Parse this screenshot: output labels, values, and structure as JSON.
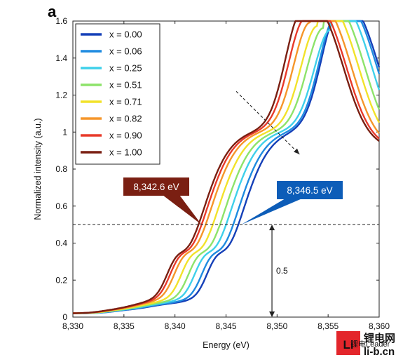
{
  "panel_label": "a",
  "chart_data": {
    "type": "line",
    "xlabel": "Energy (eV)",
    "ylabel": "Normalized intensity (a.u.)",
    "xlim": [
      8330,
      8360
    ],
    "ylim": [
      0,
      1.6
    ],
    "x_ticks": [
      {
        "value": 8330,
        "label": "8,330"
      },
      {
        "value": 8335,
        "label": "8,335"
      },
      {
        "value": 8340,
        "label": "8,340"
      },
      {
        "value": 8345,
        "label": "8,345"
      },
      {
        "value": 8350,
        "label": "8,350"
      },
      {
        "value": 8355,
        "label": "8,355"
      },
      {
        "value": 8360,
        "label": "8,360"
      }
    ],
    "y_ticks": [
      {
        "value": 0,
        "label": "0"
      },
      {
        "value": 0.2,
        "label": "0.2"
      },
      {
        "value": 0.4,
        "label": "0.4"
      },
      {
        "value": 0.6,
        "label": "0.6"
      },
      {
        "value": 0.8,
        "label": "0.8"
      },
      {
        "value": 1.0,
        "label": "1"
      },
      {
        "value": 1.2,
        "label": "1.2"
      },
      {
        "value": 1.4,
        "label": "1.4"
      },
      {
        "value": 1.6,
        "label": "1.6"
      }
    ],
    "legend_position": "top-left",
    "reference_line": {
      "y": 0.5
    },
    "step_annotation": {
      "label": "0.5",
      "from": 0,
      "to": 0.5,
      "x": 8349.5
    },
    "trend_arrow": {
      "from": [
        8346.0,
        1.22
      ],
      "to": [
        8352.2,
        0.88
      ]
    },
    "callouts": [
      {
        "label": "8,342.6 eV",
        "color": "#7a1f12",
        "x": 8342.6,
        "y": 0.5
      },
      {
        "label": "8,346.5 eV",
        "color": "#0d5db8",
        "x": 8346.5,
        "y": 0.5
      }
    ],
    "series": [
      {
        "name": "x = 0.00",
        "color": "#1540b8",
        "edge": 8346.5,
        "peakX": 8356.0,
        "peakY": 1.56
      },
      {
        "name": "x = 0.06",
        "color": "#1f8be0",
        "edge": 8346.0,
        "peakX": 8355.8,
        "peakY": 1.54
      },
      {
        "name": "x = 0.25",
        "color": "#3fd0ea",
        "edge": 8345.3,
        "peakX": 8355.3,
        "peakY": 1.47
      },
      {
        "name": "x = 0.51",
        "color": "#8de36a",
        "edge": 8344.7,
        "peakX": 8354.6,
        "peakY": 1.48
      },
      {
        "name": "x = 0.71",
        "color": "#f2e22a",
        "edge": 8344.0,
        "peakX": 8354.0,
        "peakY": 1.49
      },
      {
        "name": "x = 0.82",
        "color": "#f5962a",
        "edge": 8343.3,
        "peakX": 8353.3,
        "peakY": 1.51
      },
      {
        "name": "x = 0.90",
        "color": "#e83a2a",
        "edge": 8342.9,
        "peakX": 8352.8,
        "peakY": 1.53
      },
      {
        "name": "x = 1.00",
        "color": "#7a1f12",
        "edge": 8342.6,
        "peakX": 8352.5,
        "peakY": 1.57
      }
    ]
  },
  "watermark": {
    "glyph": "Li",
    "line1": "锂电网",
    "line2": "li-b.cn",
    "faint": "锂电Leader"
  }
}
